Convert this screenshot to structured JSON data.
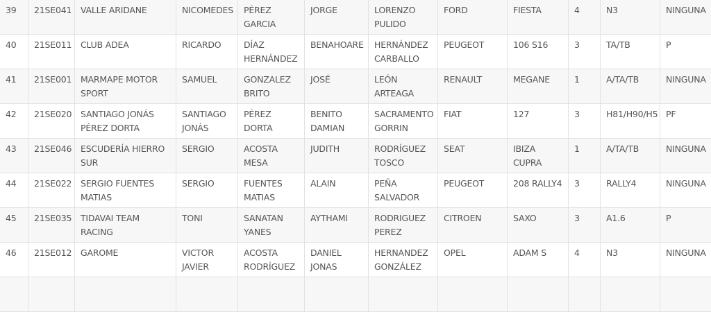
{
  "rows": [
    [
      "39",
      "21SE041",
      "VALLE ARIDANE",
      "NICOMEDES",
      "PÉREZ GARCIA",
      "JORGE",
      "LORENZO PULIDO",
      "FORD",
      "FIESTA",
      "4",
      "N3",
      "NINGUNA"
    ],
    [
      "40",
      "21SE011",
      "CLUB ADEA",
      "RICARDO",
      "DÍAZ HERNÁNDEZ",
      "BENAHOARE",
      "HERNÁNDEZ CARBALLO",
      "PEUGEOT",
      "106 S16",
      "3",
      "TA/TB",
      "P"
    ],
    [
      "41",
      "21SE001",
      "MARMAPE MOTOR SPORT",
      "SAMUEL",
      "GONZALEZ BRITO",
      "JOSÉ",
      "LEÓN ARTEAGA",
      "RENAULT",
      "MEGANE",
      "1",
      "A/TA/TB",
      "NINGUNA"
    ],
    [
      "42",
      "21SE020",
      "SANTIAGO JONÁS PÉREZ DORTA",
      "SANTIAGO JONÁS",
      "PÉREZ DORTA",
      "BENITO DAMIAN",
      "SACRAMENTO GORRIN",
      "FIAT",
      "127",
      "3",
      "H81/H90/H5",
      "PF"
    ],
    [
      "43",
      "21SE046",
      "ESCUDERÍA HIERRO SUR",
      "SERGIO",
      "ACOSTA MESA",
      "JUDITH",
      "RODRÍGUEZ TOSCO",
      "SEAT",
      "IBIZA CUPRA",
      "1",
      "A/TA/TB",
      "NINGUNA"
    ],
    [
      "44",
      "21SE022",
      "SERGIO FUENTES MATIAS",
      "SERGIO",
      "FUENTES MATIAS",
      "ALAIN",
      "PEÑA SALVADOR",
      "PEUGEOT",
      "208 RALLY4",
      "3",
      "RALLY4",
      "NINGUNA"
    ],
    [
      "45",
      "21SE035",
      "TIDAVAI TEAM RACING",
      "TONI",
      "SANATAN YANES",
      "AYTHAMI",
      "RODRIGUEZ PEREZ",
      "CITROEN",
      "SAXO",
      "3",
      "A1.6",
      "P"
    ],
    [
      "46",
      "21SE012",
      "GAROME",
      "VICTOR JAVIER",
      "ACOSTA RODRÍGUEZ",
      "DANIEL JONAS",
      "HERNANDEZ GONZÁLEZ",
      "OPEL",
      "ADAM S",
      "4",
      "N3",
      "NINGUNA"
    ]
  ]
}
